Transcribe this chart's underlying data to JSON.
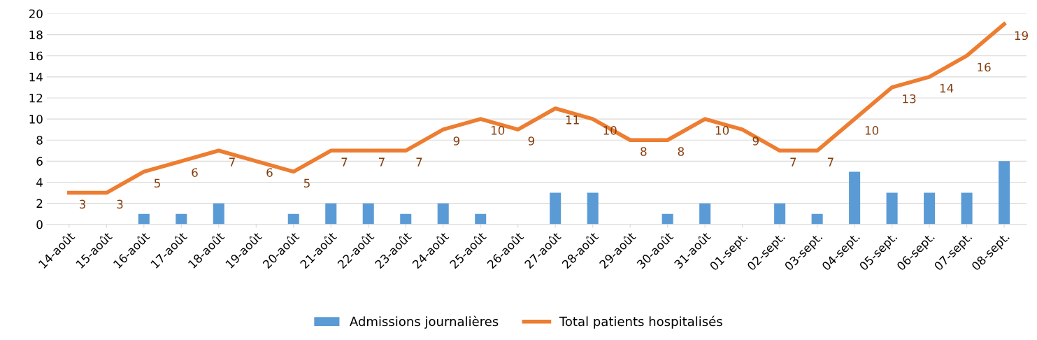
{
  "chart_data": {
    "type": "bar",
    "categories": [
      "14-août",
      "15-août",
      "16-août",
      "17-août",
      "18-août",
      "19-août",
      "20-août",
      "21-août",
      "22-août",
      "23-août",
      "24-août",
      "25-août",
      "26-août",
      "27-août",
      "28-août",
      "29-août",
      "30-août",
      "31-août",
      "01-sept.",
      "02-sept.",
      "03-sept.",
      "04-sept.",
      "05-sept.",
      "06-sept.",
      "07-sept.",
      "08-sept."
    ],
    "series": [
      {
        "name": "Admissions journalières",
        "color": "#5b9bd5",
        "values": [
          0,
          0,
          1,
          1,
          2,
          0,
          1,
          2,
          2,
          1,
          2,
          1,
          0,
          3,
          3,
          0,
          1,
          2,
          0,
          2,
          1,
          5,
          3,
          3,
          3,
          6
        ]
      },
      {
        "name": "Total patients hospitalisés",
        "type": "line",
        "color": "#ed7d31",
        "values": [
          3,
          3,
          5,
          6,
          7,
          6,
          5,
          7,
          7,
          7,
          9,
          10,
          9,
          11,
          10,
          8,
          8,
          10,
          9,
          7,
          7,
          10,
          13,
          14,
          16,
          19
        ],
        "value_labels": [
          "3",
          "3",
          "5",
          "6",
          "7",
          "6",
          "5",
          "7",
          "7",
          "7",
          "9",
          "10",
          "9",
          "11",
          "10",
          "8",
          "8",
          "10",
          "9",
          "7",
          "7",
          "10",
          "13",
          "14",
          "16",
          "19"
        ]
      }
    ],
    "ylim": [
      0,
      20
    ],
    "yticks": [
      0,
      2,
      4,
      6,
      8,
      10,
      12,
      14,
      16,
      18,
      20
    ],
    "grid": "y",
    "legend": "bottom",
    "marker": "none",
    "line_style": "solid"
  }
}
